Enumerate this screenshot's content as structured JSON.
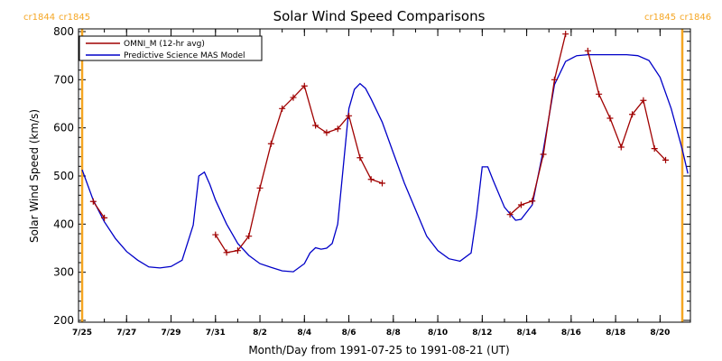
{
  "chart_data": {
    "type": "line",
    "title": "Solar Wind Speed Comparisons",
    "xlabel": "Month/Day from 1991-07-25 to 1991-08-21 (UT)",
    "ylabel": "Solar Wind Speed (km/s)",
    "xlim": [
      "1991-07-25",
      "1991-08-21"
    ],
    "ylim": [
      200,
      800
    ],
    "yticks": [
      200,
      300,
      400,
      500,
      600,
      700,
      800
    ],
    "xtick_labels": [
      "7/25",
      "7/27",
      "7/29",
      "7/31",
      "8/2",
      "8/4",
      "8/6",
      "8/8",
      "8/10",
      "8/12",
      "8/14",
      "8/16",
      "8/18",
      "8/20"
    ],
    "xtick_dates": [
      "1991-07-25",
      "1991-07-27",
      "1991-07-29",
      "1991-07-31",
      "1991-08-02",
      "1991-08-04",
      "1991-08-06",
      "1991-08-08",
      "1991-08-10",
      "1991-08-12",
      "1991-08-14",
      "1991-08-16",
      "1991-08-18",
      "1991-08-20"
    ],
    "legend_position": "top-left",
    "carrington_markers": [
      {
        "labels": [
          "cr1844",
          "cr1845"
        ],
        "date": "1991-07-25"
      },
      {
        "labels": [
          "cr1845",
          "cr1846"
        ],
        "date": "1991-08-21"
      }
    ],
    "series": [
      {
        "name": "OMNI_M (12-hr avg)",
        "color": "#a00000",
        "marker": "+",
        "segments": [
          [
            [
              "1991-07-25 12:00",
              447
            ],
            [
              "1991-07-26 00:00",
              413
            ]
          ],
          [
            [
              "1991-07-31 00:00",
              378
            ],
            [
              "1991-07-31 12:00",
              341
            ],
            [
              "1991-08-01 00:00",
              345
            ],
            [
              "1991-08-01 12:00",
              375
            ],
            [
              "1991-08-02 00:00",
              475
            ],
            [
              "1991-08-02 12:00",
              567
            ],
            [
              "1991-08-03 00:00",
              640
            ],
            [
              "1991-08-03 12:00",
              663
            ],
            [
              "1991-08-04 00:00",
              687
            ],
            [
              "1991-08-04 12:00",
              605
            ],
            [
              "1991-08-05 00:00",
              590
            ],
            [
              "1991-08-05 12:00",
              598
            ],
            [
              "1991-08-06 00:00",
              625
            ],
            [
              "1991-08-06 12:00",
              538
            ],
            [
              "1991-08-07 00:00",
              493
            ],
            [
              "1991-08-07 12:00",
              485
            ]
          ],
          [
            [
              "1991-08-13 06:00",
              420
            ],
            [
              "1991-08-13 18:00",
              440
            ],
            [
              "1991-08-14 06:00",
              448
            ],
            [
              "1991-08-14 18:00",
              545
            ],
            [
              "1991-08-15 06:00",
              700
            ],
            [
              "1991-08-15 18:00",
              795
            ]
          ],
          [
            [
              "1991-08-16 18:00",
              760
            ],
            [
              "1991-08-17 06:00",
              670
            ],
            [
              "1991-08-17 18:00",
              620
            ],
            [
              "1991-08-18 06:00",
              560
            ],
            [
              "1991-08-18 18:00",
              628
            ],
            [
              "1991-08-19 06:00",
              657
            ],
            [
              "1991-08-19 18:00",
              557
            ],
            [
              "1991-08-20 06:00",
              533
            ]
          ]
        ]
      },
      {
        "name": "Predictive Science MAS Model",
        "color": "#0000c8",
        "marker": "none",
        "points": [
          [
            "1991-07-25 00:00",
            513
          ],
          [
            "1991-07-25 12:00",
            450
          ],
          [
            "1991-07-26 00:00",
            405
          ],
          [
            "1991-07-26 12:00",
            370
          ],
          [
            "1991-07-27 00:00",
            343
          ],
          [
            "1991-07-27 12:00",
            325
          ],
          [
            "1991-07-28 00:00",
            311
          ],
          [
            "1991-07-28 12:00",
            309
          ],
          [
            "1991-07-29 00:00",
            312
          ],
          [
            "1991-07-29 12:00",
            325
          ],
          [
            "1991-07-30 00:00",
            398
          ],
          [
            "1991-07-30 06:00",
            500
          ],
          [
            "1991-07-30 12:00",
            508
          ],
          [
            "1991-07-30 18:00",
            482
          ],
          [
            "1991-07-31 00:00",
            450
          ],
          [
            "1991-07-31 12:00",
            400
          ],
          [
            "1991-08-01 00:00",
            360
          ],
          [
            "1991-08-01 12:00",
            335
          ],
          [
            "1991-08-02 00:00",
            318
          ],
          [
            "1991-08-02 12:00",
            310
          ],
          [
            "1991-08-03 00:00",
            303
          ],
          [
            "1991-08-03 12:00",
            301
          ],
          [
            "1991-08-04 00:00",
            318
          ],
          [
            "1991-08-04 06:00",
            340
          ],
          [
            "1991-08-04 12:00",
            351
          ],
          [
            "1991-08-04 18:00",
            348
          ],
          [
            "1991-08-05 00:00",
            350
          ],
          [
            "1991-08-05 06:00",
            360
          ],
          [
            "1991-08-05 12:00",
            400
          ],
          [
            "1991-08-05 18:00",
            520
          ],
          [
            "1991-08-06 00:00",
            640
          ],
          [
            "1991-08-06 06:00",
            680
          ],
          [
            "1991-08-06 12:00",
            692
          ],
          [
            "1991-08-06 18:00",
            682
          ],
          [
            "1991-08-07 00:00",
            660
          ],
          [
            "1991-08-07 12:00",
            612
          ],
          [
            "1991-08-08 00:00",
            548
          ],
          [
            "1991-08-08 12:00",
            485
          ],
          [
            "1991-08-09 00:00",
            430
          ],
          [
            "1991-08-09 12:00",
            375
          ],
          [
            "1991-08-10 00:00",
            345
          ],
          [
            "1991-08-10 12:00",
            328
          ],
          [
            "1991-08-11 00:00",
            323
          ],
          [
            "1991-08-11 12:00",
            340
          ],
          [
            "1991-08-11 18:00",
            420
          ],
          [
            "1991-08-12 00:00",
            519
          ],
          [
            "1991-08-12 06:00",
            519
          ],
          [
            "1991-08-12 12:00",
            490
          ],
          [
            "1991-08-13 00:00",
            435
          ],
          [
            "1991-08-13 12:00",
            408
          ],
          [
            "1991-08-13 18:00",
            410
          ],
          [
            "1991-08-14 06:00",
            440
          ],
          [
            "1991-08-14 18:00",
            555
          ],
          [
            "1991-08-15 06:00",
            690
          ],
          [
            "1991-08-15 18:00",
            738
          ],
          [
            "1991-08-16 06:00",
            750
          ],
          [
            "1991-08-16 18:00",
            752
          ],
          [
            "1991-08-17 12:00",
            752
          ],
          [
            "1991-08-18 12:00",
            752
          ],
          [
            "1991-08-19 00:00",
            750
          ],
          [
            "1991-08-19 12:00",
            740
          ],
          [
            "1991-08-20 00:00",
            705
          ],
          [
            "1991-08-20 12:00",
            640
          ],
          [
            "1991-08-21 00:00",
            555
          ],
          [
            "1991-08-21 06:00",
            505
          ]
        ]
      }
    ]
  },
  "colors": {
    "carrington_line": "#f5a623",
    "carrington_text": "#f5a623",
    "axes": "#000000"
  }
}
